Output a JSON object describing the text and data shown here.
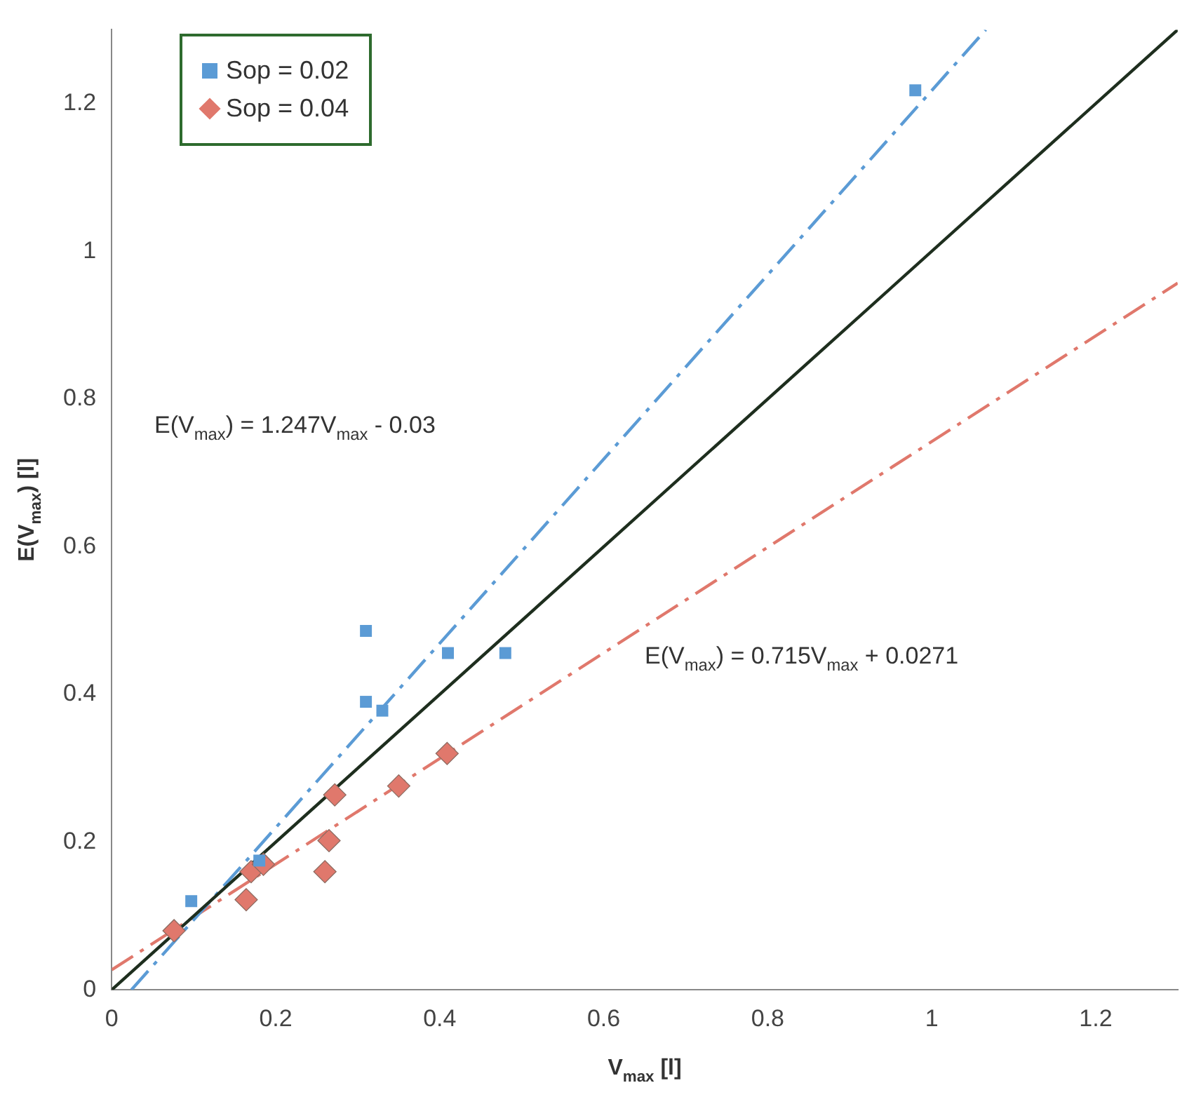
{
  "chart_data": {
    "type": "scatter",
    "xlabel": "V$_{max}$ [l]",
    "ylabel": "E(V$_{max}$) [l]",
    "xlim": [
      0,
      1.3
    ],
    "ylim": [
      0,
      1.3
    ],
    "xticks": [
      0,
      0.2,
      0.4,
      0.6,
      0.8,
      1,
      1.2
    ],
    "yticks": [
      0,
      0.2,
      0.4,
      0.6,
      0.8,
      1,
      1.2
    ],
    "grid": false,
    "legend": "top left",
    "series": [
      {
        "name": "Sop = 0.02",
        "marker": "square",
        "color": "#5b9bd5",
        "x": [
          0.097,
          0.18,
          0.31,
          0.31,
          0.33,
          0.41,
          0.48,
          0.98
        ],
        "values": [
          0.12,
          0.175,
          0.486,
          0.39,
          0.378,
          0.456,
          0.456,
          1.218
        ]
      },
      {
        "name": "Sop = 0.04",
        "marker": "diamond",
        "color": "#e0786c",
        "x": [
          0.076,
          0.164,
          0.17,
          0.185,
          0.26,
          0.265,
          0.272,
          0.35,
          0.409
        ],
        "values": [
          0.08,
          0.122,
          0.16,
          0.17,
          0.16,
          0.202,
          0.264,
          0.276,
          0.32
        ]
      },
      {
        "type": "line",
        "marker": "none",
        "line_style": "solid",
        "color": "#1e2e1e",
        "x": [
          0,
          1.3
        ],
        "values": [
          0,
          1.3
        ]
      },
      {
        "type": "line",
        "marker": "none",
        "line_style": "dashed",
        "color": "#5b9bd5",
        "x": [
          0.024,
          1.066
        ],
        "values": [
          0,
          1.3
        ]
      },
      {
        "type": "line",
        "marker": "none",
        "line_style": "dashed",
        "color": "#e0786c",
        "x": [
          0,
          1.3
        ],
        "values": [
          0.027,
          0.957
        ]
      }
    ],
    "annotations": [
      "E(V$_{max}$) = 1.247V$_{max}$ - 0.03",
      "E(V$_{max}$) = 0.715V$_{max}$ + 0.0271"
    ]
  }
}
